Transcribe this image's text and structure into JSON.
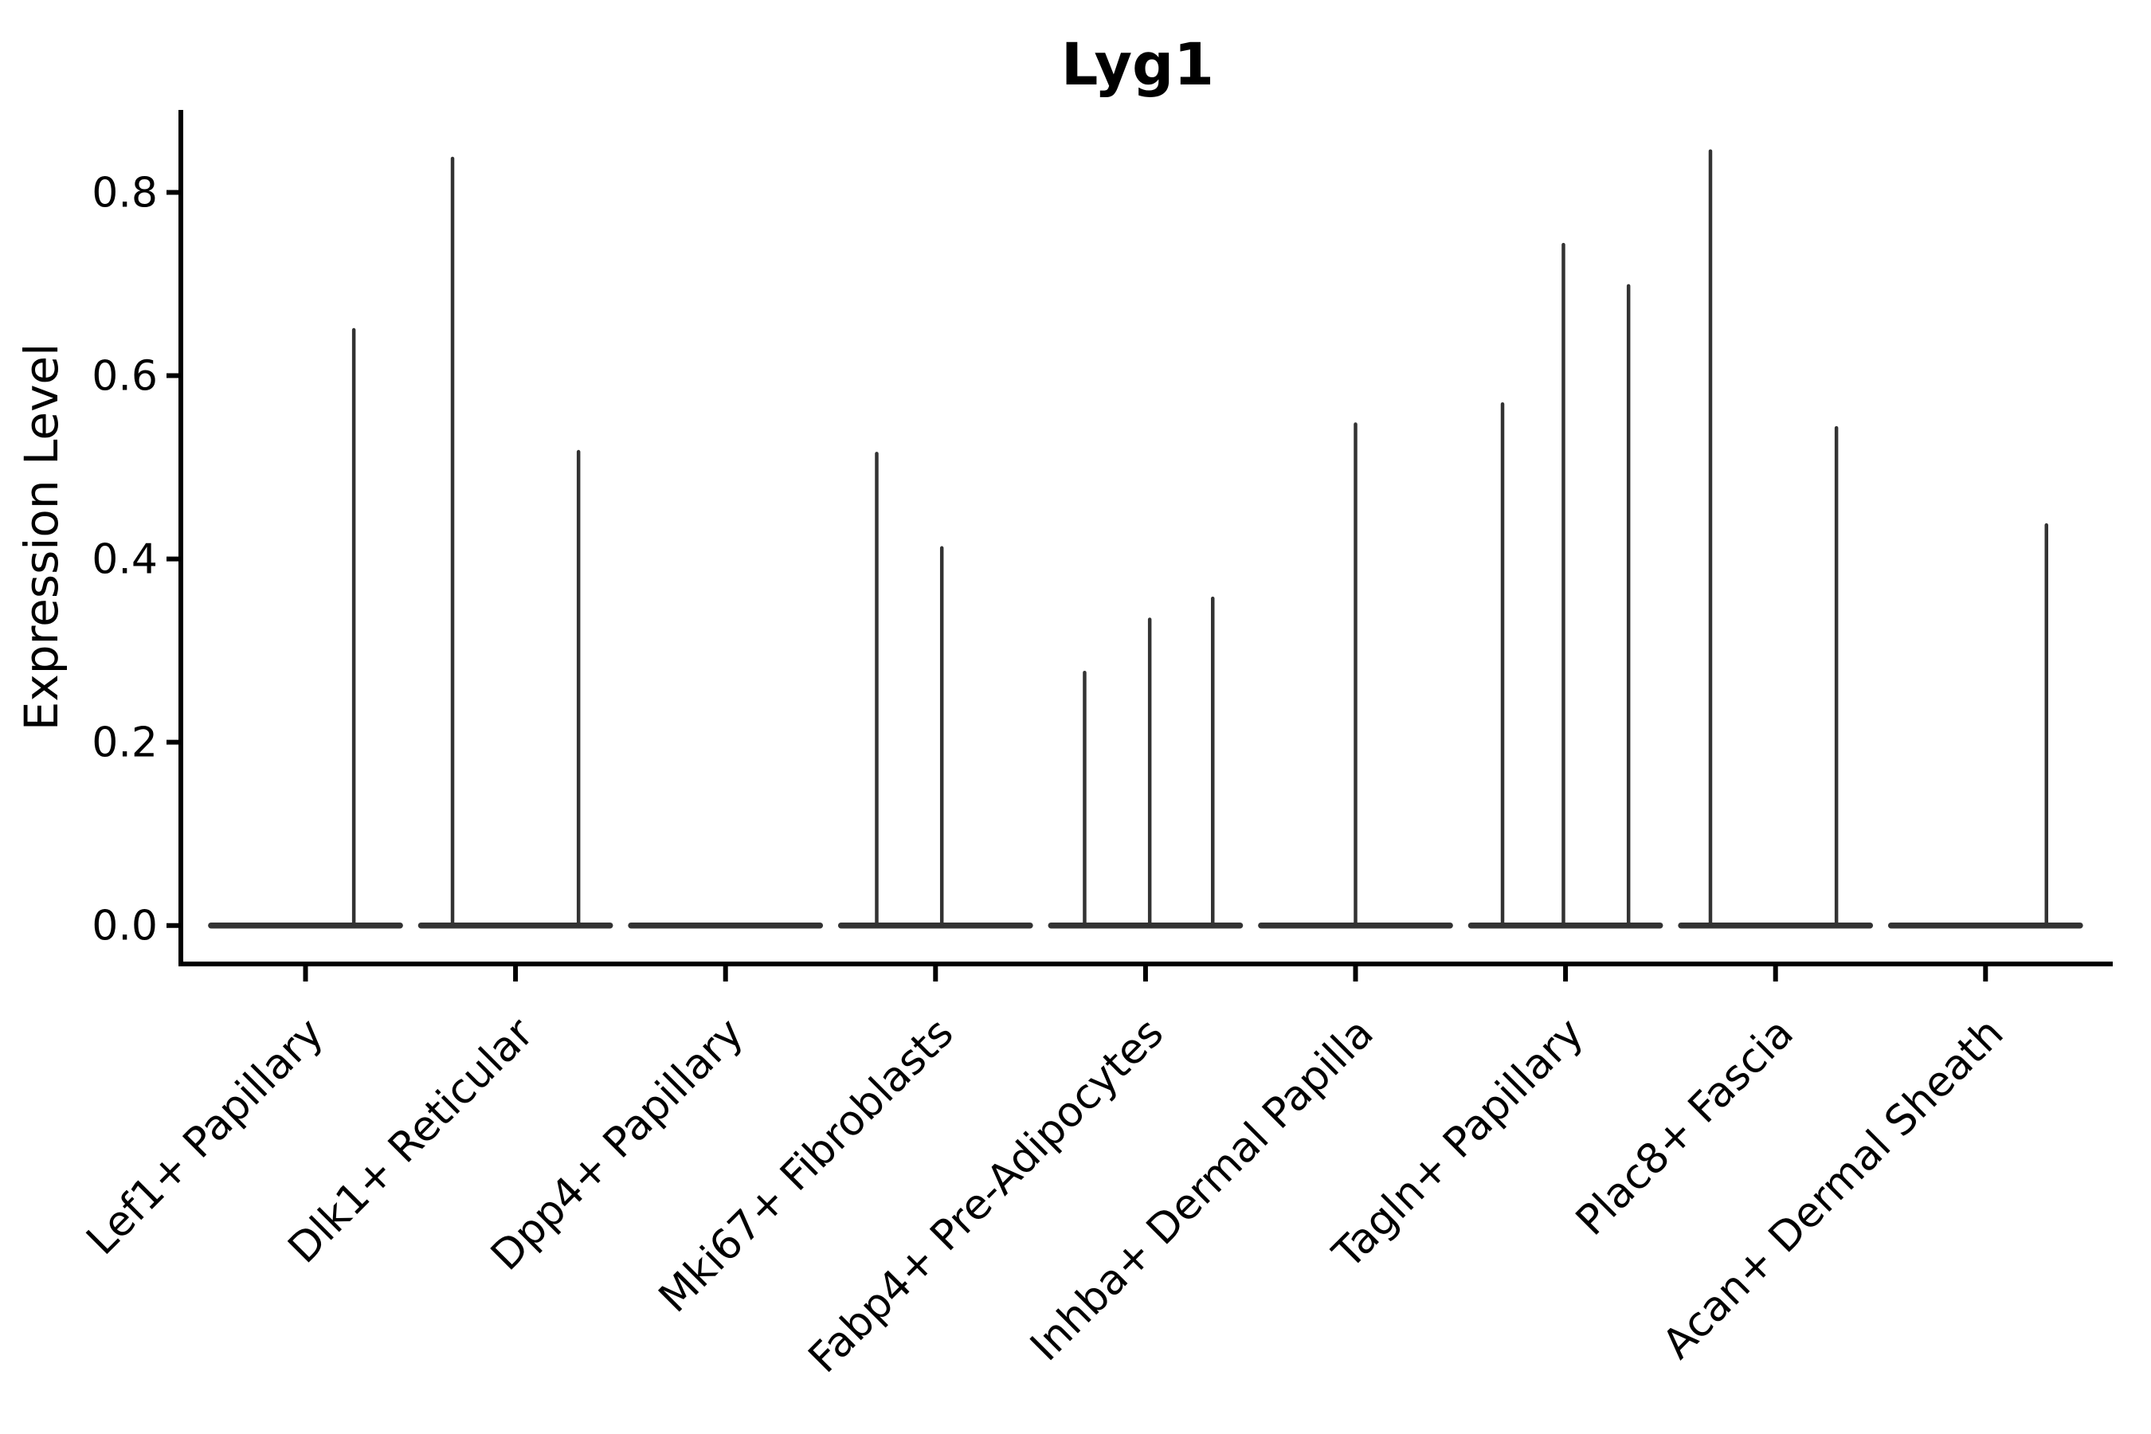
{
  "chart_data": {
    "type": "violin",
    "title": "Lyg1",
    "xlabel": "",
    "ylabel": "Expression Level",
    "ylim": [
      -0.042,
      0.89
    ],
    "yticks": [
      0.0,
      0.2,
      0.4,
      0.6,
      0.8
    ],
    "ytick_labels": [
      "0.0",
      "0.2",
      "0.4",
      "0.6",
      "0.8"
    ],
    "grid": false,
    "legend": "none",
    "axis_color": "#000000",
    "violin_color": "#333333",
    "background_color": "#ffffff",
    "violin_half_width_frac": 0.45,
    "baseline_value": 0.0,
    "categories": [
      "Lef1+ Papillary",
      "Dlk1+ Reticular",
      "Dpp4+ Papillary",
      "Mki67+ Fibroblasts",
      "Fabp4+ Pre-Adipocytes",
      "Inhba+ Dermal Papilla",
      "Tagln+ Papillary",
      "Plac8+ Fascia",
      "Acan+ Dermal Sheath"
    ],
    "violins": [
      {
        "category": "Lef1+ Papillary",
        "spikes": [
          {
            "x_offset_frac": 0.23,
            "value": 0.65
          }
        ]
      },
      {
        "category": "Dlk1+ Reticular",
        "spikes": [
          {
            "x_offset_frac": -0.3,
            "value": 0.837
          },
          {
            "x_offset_frac": 0.3,
            "value": 0.517
          }
        ]
      },
      {
        "category": "Dpp4+ Papillary",
        "spikes": []
      },
      {
        "category": "Mki67+ Fibroblasts",
        "spikes": [
          {
            "x_offset_frac": -0.28,
            "value": 0.515
          },
          {
            "x_offset_frac": 0.03,
            "value": 0.412
          }
        ]
      },
      {
        "category": "Fabp4+ Pre-Adipocytes",
        "spikes": [
          {
            "x_offset_frac": -0.29,
            "value": 0.276
          },
          {
            "x_offset_frac": 0.02,
            "value": 0.334
          },
          {
            "x_offset_frac": 0.32,
            "value": 0.357
          }
        ]
      },
      {
        "category": "Inhba+ Dermal Papilla",
        "spikes": [
          {
            "x_offset_frac": 0.0,
            "value": 0.547
          }
        ]
      },
      {
        "category": "Tagln+ Papillary",
        "spikes": [
          {
            "x_offset_frac": -0.3,
            "value": 0.569
          },
          {
            "x_offset_frac": -0.01,
            "value": 0.743
          },
          {
            "x_offset_frac": 0.3,
            "value": 0.698
          }
        ]
      },
      {
        "category": "Plac8+ Fascia",
        "spikes": [
          {
            "x_offset_frac": -0.31,
            "value": 0.845
          },
          {
            "x_offset_frac": 0.29,
            "value": 0.543
          }
        ]
      },
      {
        "category": "Acan+ Dermal Sheath",
        "spikes": [
          {
            "x_offset_frac": 0.29,
            "value": 0.437
          }
        ]
      }
    ]
  }
}
